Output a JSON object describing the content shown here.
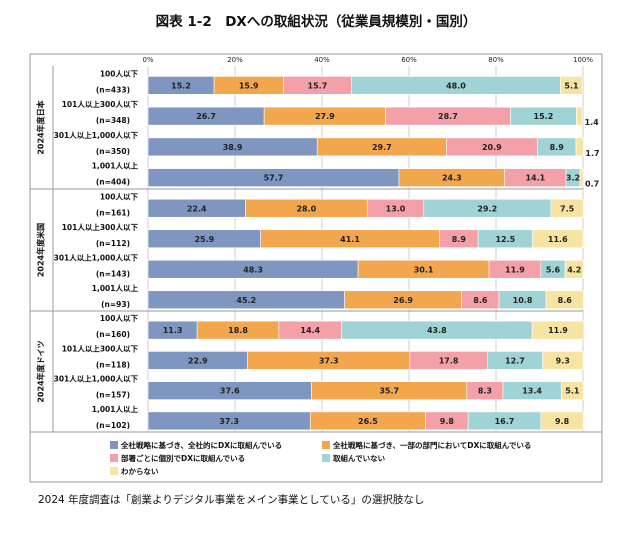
{
  "title": "図表 1-2　DXへの取組状況（従業員規模別・国別）",
  "note": "2024 年度調査は「創業よりデジタル事業をメイン事業としている」の選択肢なし",
  "chart_data": {
    "type": "bar",
    "orientation": "horizontal",
    "stacked": "percent",
    "xlim": [
      0,
      100
    ],
    "xticks": [
      "0%",
      "20%",
      "40%",
      "60%",
      "80%",
      "100%"
    ],
    "grid": true,
    "legend_position": "bottom",
    "series": [
      {
        "name": "全社戦略に基づき、全社的にDXに取組んでいる",
        "color": "#7f96c1"
      },
      {
        "name": "全社戦略に基づき、一部の部門においてDXに取組んでいる",
        "color": "#f2a64e"
      },
      {
        "name": "部署ごとに個別でDXに取組んでいる",
        "color": "#f4a0a8"
      },
      {
        "name": "取組んでいない",
        "color": "#9fd3d6"
      },
      {
        "name": "わからない",
        "color": "#f7e4a2"
      }
    ],
    "groups": [
      {
        "label": "2024年度日本",
        "bars": [
          {
            "label": "100人以下",
            "n": "(n=433)",
            "values": [
              15.2,
              15.9,
              15.7,
              48.0,
              5.1
            ],
            "labels": [
              "15.2",
              "15.9",
              "15.7",
              "48.0",
              "5.1"
            ]
          },
          {
            "label": "101人以上300人以下",
            "n": "(n=348)",
            "values": [
              26.7,
              27.9,
              28.7,
              15.2,
              1.4
            ],
            "labels": [
              "26.7",
              "27.9",
              "28.7",
              "15.2",
              "1.4"
            ]
          },
          {
            "label": "301人以上1,000人以下",
            "n": "(n=350)",
            "values": [
              38.9,
              29.7,
              20.9,
              8.9,
              1.7
            ],
            "labels": [
              "38.9",
              "29.7",
              "20.9",
              "8.9",
              "1.7"
            ]
          },
          {
            "label": "1,001人以上",
            "n": "(n=404)",
            "values": [
              57.7,
              24.3,
              14.1,
              3.2,
              0.7
            ],
            "labels": [
              "57.7",
              "24.3",
              "14.1",
              "3.2",
              "0.7"
            ]
          }
        ]
      },
      {
        "label": "2024年度米国",
        "bars": [
          {
            "label": "100人以下",
            "n": "(n=161)",
            "values": [
              22.4,
              28.0,
              13.0,
              29.2,
              7.5
            ],
            "labels": [
              "22.4",
              "28.0",
              "13.0",
              "29.2",
              "7.5"
            ]
          },
          {
            "label": "101人以上300人以下",
            "n": "(n=112)",
            "values": [
              25.9,
              41.1,
              8.9,
              12.5,
              11.6
            ],
            "labels": [
              "25.9",
              "41.1",
              "8.9",
              "12.5",
              "11.6"
            ]
          },
          {
            "label": "301人以上1,000人以下",
            "n": "(n=143)",
            "values": [
              48.3,
              30.1,
              11.9,
              5.6,
              4.2
            ],
            "labels": [
              "48.3",
              "30.1",
              "11.9",
              "5.6",
              "4.2"
            ]
          },
          {
            "label": "1,001人以上",
            "n": "(n=93)",
            "values": [
              45.2,
              26.9,
              8.6,
              10.8,
              8.6
            ],
            "labels": [
              "45.2",
              "26.9",
              "8.6",
              "10.8",
              "8.6"
            ]
          }
        ]
      },
      {
        "label": "2024年度ドイツ",
        "bars": [
          {
            "label": "100人以下",
            "n": "(n=160)",
            "values": [
              11.3,
              18.8,
              14.4,
              43.8,
              11.9
            ],
            "labels": [
              "11.3",
              "18.8",
              "14.4",
              "43.8",
              "11.9"
            ]
          },
          {
            "label": "101人以上300人以下",
            "n": "(n=118)",
            "values": [
              22.9,
              37.3,
              17.8,
              12.7,
              9.3
            ],
            "labels": [
              "22.9",
              "37.3",
              "17.8",
              "12.7",
              "9.3"
            ]
          },
          {
            "label": "301人以上1,000人以下",
            "n": "(n=157)",
            "values": [
              37.6,
              35.7,
              8.3,
              13.4,
              5.1
            ],
            "labels": [
              "37.6",
              "35.7",
              "8.3",
              "13.4",
              "5.1"
            ]
          },
          {
            "label": "1,001人以上",
            "n": "(n=102)",
            "values": [
              37.3,
              26.5,
              9.8,
              16.7,
              9.8
            ],
            "labels": [
              "37.3",
              "26.5",
              "9.8",
              "16.7",
              "9.8"
            ]
          }
        ]
      }
    ]
  }
}
